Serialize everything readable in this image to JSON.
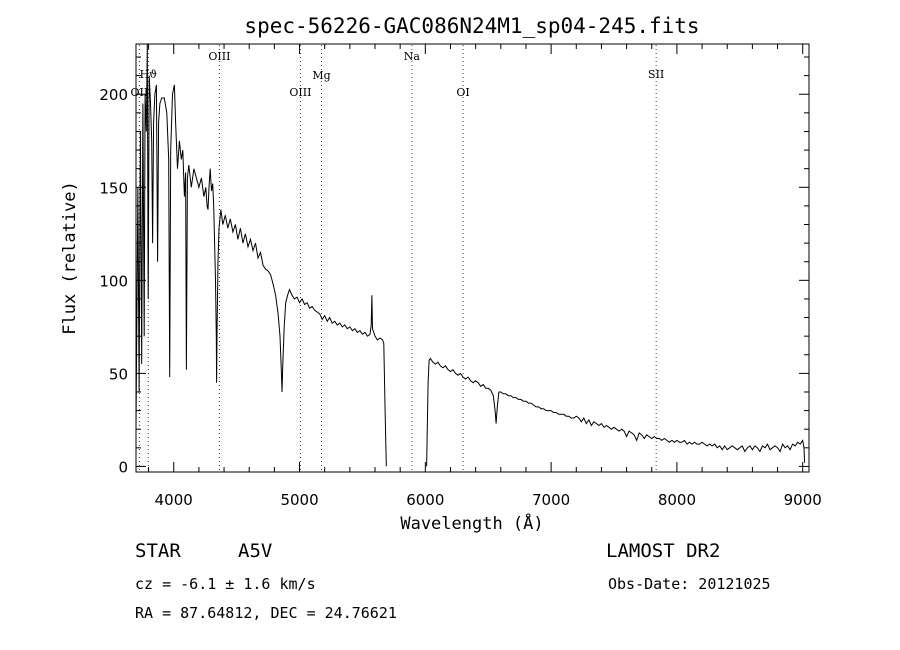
{
  "info": {
    "class": "STAR",
    "subclass": "A5V",
    "survey": "LAMOST DR2",
    "cz": "cz = -6.1 ± 1.6 km/s",
    "obs_date": "Obs-Date: 20121025",
    "radec": "RA =  87.64812, DEC =  24.76621"
  },
  "chart_data": {
    "type": "line",
    "title": "spec-56226-GAC086N24M1_sp04-245.fits",
    "xlabel": "Wavelength (Å)",
    "ylabel": "Flux (relative)",
    "xlim": [
      3700,
      9050
    ],
    "ylim": [
      -3,
      227
    ],
    "xticks": [
      4000,
      5000,
      6000,
      7000,
      8000,
      9000
    ],
    "yticks": [
      0,
      50,
      100,
      150,
      200
    ],
    "line_color": "#000000",
    "marker_color": "#cc0000",
    "spectrum_points": [
      [
        3700,
        20
      ],
      [
        3715,
        150
      ],
      [
        3725,
        40
      ],
      [
        3735,
        180
      ],
      [
        3745,
        55
      ],
      [
        3755,
        195
      ],
      [
        3765,
        70
      ],
      [
        3772,
        200
      ],
      [
        3782,
        180
      ],
      [
        3790,
        228
      ],
      [
        3797,
        90
      ],
      [
        3805,
        210
      ],
      [
        3815,
        195
      ],
      [
        3825,
        175
      ],
      [
        3832,
        120
      ],
      [
        3840,
        185
      ],
      [
        3850,
        200
      ],
      [
        3862,
        205
      ],
      [
        3872,
        110
      ],
      [
        3880,
        185
      ],
      [
        3890,
        195
      ],
      [
        3905,
        198
      ],
      [
        3925,
        198
      ],
      [
        3945,
        190
      ],
      [
        3960,
        165
      ],
      [
        3968,
        48
      ],
      [
        3976,
        170
      ],
      [
        3990,
        200
      ],
      [
        4005,
        205
      ],
      [
        4015,
        185
      ],
      [
        4030,
        160
      ],
      [
        4045,
        175
      ],
      [
        4060,
        165
      ],
      [
        4072,
        170
      ],
      [
        4085,
        145
      ],
      [
        4094,
        158
      ],
      [
        4101,
        52
      ],
      [
        4109,
        155
      ],
      [
        4120,
        162
      ],
      [
        4140,
        150
      ],
      [
        4160,
        160
      ],
      [
        4180,
        155
      ],
      [
        4200,
        150
      ],
      [
        4220,
        155
      ],
      [
        4240,
        145
      ],
      [
        4255,
        150
      ],
      [
        4265,
        140
      ],
      [
        4272,
        138
      ],
      [
        4280,
        150
      ],
      [
        4290,
        160
      ],
      [
        4300,
        148
      ],
      [
        4310,
        152
      ],
      [
        4318,
        140
      ],
      [
        4325,
        120
      ],
      [
        4332,
        100
      ],
      [
        4338,
        70
      ],
      [
        4341,
        45
      ],
      [
        4345,
        75
      ],
      [
        4352,
        110
      ],
      [
        4360,
        128
      ],
      [
        4375,
        138
      ],
      [
        4390,
        130
      ],
      [
        4410,
        135
      ],
      [
        4430,
        128
      ],
      [
        4450,
        133
      ],
      [
        4470,
        126
      ],
      [
        4490,
        130
      ],
      [
        4510,
        122
      ],
      [
        4530,
        128
      ],
      [
        4550,
        120
      ],
      [
        4570,
        125
      ],
      [
        4590,
        118
      ],
      [
        4610,
        122
      ],
      [
        4630,
        116
      ],
      [
        4650,
        120
      ],
      [
        4670,
        112
      ],
      [
        4690,
        115
      ],
      [
        4710,
        108
      ],
      [
        4730,
        106
      ],
      [
        4750,
        105
      ],
      [
        4770,
        103
      ],
      [
        4790,
        98
      ],
      [
        4810,
        92
      ],
      [
        4830,
        82
      ],
      [
        4845,
        70
      ],
      [
        4855,
        52
      ],
      [
        4861,
        40
      ],
      [
        4867,
        55
      ],
      [
        4878,
        75
      ],
      [
        4890,
        88
      ],
      [
        4905,
        92
      ],
      [
        4920,
        95
      ],
      [
        4940,
        92
      ],
      [
        4960,
        90
      ],
      [
        4980,
        91
      ],
      [
        5000,
        88
      ],
      [
        5020,
        90
      ],
      [
        5040,
        87
      ],
      [
        5060,
        88
      ],
      [
        5080,
        85
      ],
      [
        5100,
        86
      ],
      [
        5120,
        84
      ],
      [
        5140,
        83
      ],
      [
        5160,
        82
      ],
      [
        5180,
        79
      ],
      [
        5200,
        81
      ],
      [
        5220,
        78
      ],
      [
        5240,
        80
      ],
      [
        5260,
        77
      ],
      [
        5280,
        78
      ],
      [
        5300,
        76
      ],
      [
        5320,
        77
      ],
      [
        5340,
        75
      ],
      [
        5360,
        76
      ],
      [
        5380,
        74
      ],
      [
        5400,
        75
      ],
      [
        5420,
        73
      ],
      [
        5440,
        74
      ],
      [
        5460,
        72
      ],
      [
        5480,
        73
      ],
      [
        5500,
        71
      ],
      [
        5520,
        72
      ],
      [
        5540,
        70
      ],
      [
        5560,
        71
      ],
      [
        5570,
        76
      ],
      [
        5575,
        92
      ],
      [
        5580,
        74
      ],
      [
        5600,
        70
      ],
      [
        5620,
        68
      ],
      [
        5640,
        69
      ],
      [
        5660,
        68
      ],
      [
        5670,
        66
      ],
      [
        5680,
        30
      ],
      [
        5690,
        0
      ],
      null,
      [
        6010,
        0
      ],
      [
        6022,
        45
      ],
      [
        6030,
        57
      ],
      [
        6040,
        58
      ],
      [
        6060,
        56
      ],
      [
        6080,
        55
      ],
      [
        6100,
        56
      ],
      [
        6120,
        54
      ],
      [
        6140,
        53
      ],
      [
        6160,
        54
      ],
      [
        6180,
        52
      ],
      [
        6200,
        51
      ],
      [
        6220,
        52
      ],
      [
        6240,
        50
      ],
      [
        6260,
        49
      ],
      [
        6280,
        50
      ],
      [
        6300,
        48
      ],
      [
        6320,
        47
      ],
      [
        6340,
        48
      ],
      [
        6360,
        46
      ],
      [
        6380,
        45
      ],
      [
        6400,
        46
      ],
      [
        6420,
        45
      ],
      [
        6440,
        43
      ],
      [
        6460,
        44
      ],
      [
        6480,
        42
      ],
      [
        6500,
        42
      ],
      [
        6520,
        41
      ],
      [
        6540,
        38
      ],
      [
        6555,
        30
      ],
      [
        6563,
        23
      ],
      [
        6572,
        32
      ],
      [
        6585,
        40
      ],
      [
        6600,
        40
      ],
      [
        6620,
        39
      ],
      [
        6640,
        39
      ],
      [
        6660,
        38
      ],
      [
        6680,
        38
      ],
      [
        6700,
        37
      ],
      [
        6720,
        37
      ],
      [
        6740,
        36
      ],
      [
        6760,
        36
      ],
      [
        6780,
        35
      ],
      [
        6800,
        35
      ],
      [
        6820,
        34
      ],
      [
        6840,
        34
      ],
      [
        6860,
        33
      ],
      [
        6880,
        32
      ],
      [
        6900,
        32
      ],
      [
        6920,
        31
      ],
      [
        6940,
        31
      ],
      [
        6960,
        30
      ],
      [
        6980,
        30
      ],
      [
        7000,
        30
      ],
      [
        7020,
        29
      ],
      [
        7040,
        29
      ],
      [
        7060,
        28
      ],
      [
        7080,
        28
      ],
      [
        7100,
        28
      ],
      [
        7120,
        27
      ],
      [
        7140,
        27
      ],
      [
        7160,
        26
      ],
      [
        7180,
        26
      ],
      [
        7200,
        27
      ],
      [
        7220,
        26
      ],
      [
        7240,
        24
      ],
      [
        7260,
        26
      ],
      [
        7280,
        23
      ],
      [
        7300,
        25
      ],
      [
        7320,
        22
      ],
      [
        7340,
        24
      ],
      [
        7360,
        23
      ],
      [
        7380,
        22
      ],
      [
        7400,
        23
      ],
      [
        7420,
        21
      ],
      [
        7440,
        22
      ],
      [
        7460,
        21
      ],
      [
        7480,
        20
      ],
      [
        7500,
        21
      ],
      [
        7520,
        20
      ],
      [
        7540,
        19
      ],
      [
        7560,
        20
      ],
      [
        7580,
        19
      ],
      [
        7600,
        16
      ],
      [
        7620,
        19
      ],
      [
        7640,
        18
      ],
      [
        7660,
        17
      ],
      [
        7680,
        14
      ],
      [
        7700,
        18
      ],
      [
        7720,
        17
      ],
      [
        7740,
        15
      ],
      [
        7760,
        17
      ],
      [
        7780,
        16
      ],
      [
        7800,
        15
      ],
      [
        7820,
        16
      ],
      [
        7840,
        15
      ],
      [
        7860,
        15
      ],
      [
        7880,
        14
      ],
      [
        7900,
        15
      ],
      [
        7920,
        14
      ],
      [
        7940,
        13
      ],
      [
        7960,
        14
      ],
      [
        7980,
        13
      ],
      [
        8000,
        14
      ],
      [
        8020,
        13
      ],
      [
        8040,
        13
      ],
      [
        8060,
        14
      ],
      [
        8080,
        12
      ],
      [
        8100,
        13
      ],
      [
        8120,
        12
      ],
      [
        8140,
        13
      ],
      [
        8160,
        12
      ],
      [
        8180,
        12
      ],
      [
        8200,
        13
      ],
      [
        8220,
        12
      ],
      [
        8240,
        11
      ],
      [
        8260,
        12
      ],
      [
        8280,
        11
      ],
      [
        8300,
        12
      ],
      [
        8320,
        10
      ],
      [
        8340,
        11
      ],
      [
        8360,
        9
      ],
      [
        8380,
        11
      ],
      [
        8400,
        9
      ],
      [
        8420,
        10
      ],
      [
        8440,
        11
      ],
      [
        8460,
        10
      ],
      [
        8480,
        9
      ],
      [
        8500,
        10
      ],
      [
        8520,
        11
      ],
      [
        8540,
        8
      ],
      [
        8560,
        10
      ],
      [
        8580,
        11
      ],
      [
        8600,
        9
      ],
      [
        8620,
        11
      ],
      [
        8640,
        10
      ],
      [
        8660,
        8
      ],
      [
        8680,
        11
      ],
      [
        8700,
        10
      ],
      [
        8720,
        12
      ],
      [
        8740,
        9
      ],
      [
        8760,
        10
      ],
      [
        8780,
        11
      ],
      [
        8800,
        10
      ],
      [
        8820,
        8
      ],
      [
        8840,
        12
      ],
      [
        8860,
        10
      ],
      [
        8880,
        11
      ],
      [
        8900,
        9
      ],
      [
        8920,
        12
      ],
      [
        8940,
        11
      ],
      [
        8960,
        13
      ],
      [
        8980,
        12
      ],
      [
        9000,
        14
      ],
      [
        9010,
        10
      ],
      [
        9015,
        2
      ]
    ],
    "line_markers": [
      {
        "label": "Hϑ",
        "x": 3798,
        "row": 2
      },
      {
        "label": "OII",
        "x": 3727,
        "row": 3
      },
      {
        "label": "OIII",
        "x": 4363,
        "row": 0
      },
      {
        "label": "OIII",
        "x": 5007,
        "row": 3
      },
      {
        "label": "Mg",
        "x": 5175,
        "row": 1
      },
      {
        "label": "Na",
        "x": 5893,
        "row": 0
      },
      {
        "label": "OI",
        "x": 6300,
        "row": 3
      },
      {
        "label": "SII",
        "x": 7835,
        "row": 2
      }
    ]
  }
}
